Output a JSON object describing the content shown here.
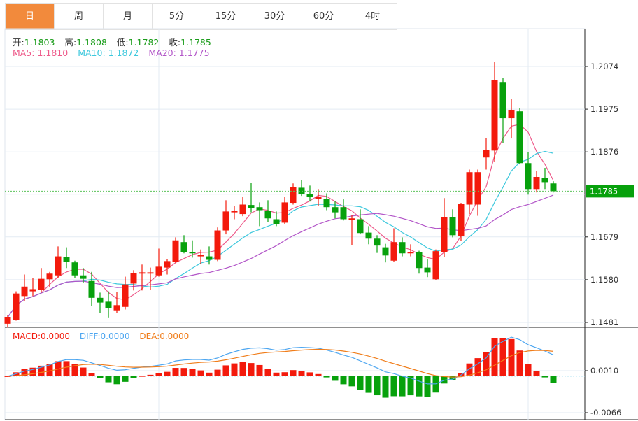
{
  "tabs": [
    "日",
    "周",
    "月",
    "5分",
    "15分",
    "30分",
    "60分",
    "4时"
  ],
  "active_tab": 0,
  "ohlc_legend": {
    "open_label": "开:",
    "open": "1.1803",
    "high_label": "高:",
    "high": "1.1808",
    "low_label": "低:",
    "low": "1.1782",
    "close_label": "收:",
    "close": "1.1785"
  },
  "ma_legend": {
    "ma5": "MA5: 1.1810",
    "ma10": "MA10: 1.1872",
    "ma20": "MA20: 1.1775"
  },
  "macd_legend": {
    "macd": "MACD:0.0000",
    "diff": "DIFF:0.0000",
    "dea": "DEA:0.0000"
  },
  "colors": {
    "up": "#f31a0c",
    "down": "#07a10c",
    "ma5": "#ee5a8a",
    "ma10": "#3dc8dd",
    "ma20": "#b255c8",
    "diff": "#4da6f0",
    "dea": "#f07d1a",
    "accent": "#f28a3c"
  },
  "chart_data": [
    {
      "type": "candlestick",
      "title": "",
      "current_price": "1.1785",
      "y_ticks": [
        "1.2074",
        "1.1975",
        "1.1876",
        "1.1679",
        "1.1580",
        "1.1481"
      ],
      "ylim": [
        1.1481,
        1.2074
      ],
      "ma_periods": [
        5,
        10,
        20
      ],
      "candles_ohlc": [
        [
          1.1478,
          1.1498,
          1.1469,
          1.1493
        ],
        [
          1.1487,
          1.1553,
          1.1485,
          1.1548
        ],
        [
          1.1542,
          1.1592,
          1.153,
          1.1564
        ],
        [
          1.1553,
          1.1584,
          1.1542,
          1.1558
        ],
        [
          1.1556,
          1.1607,
          1.155,
          1.1582
        ],
        [
          1.1581,
          1.1598,
          1.1563,
          1.1594
        ],
        [
          1.159,
          1.1657,
          1.1584,
          1.1634
        ],
        [
          1.1632,
          1.1655,
          1.1607,
          1.1621
        ],
        [
          1.162,
          1.1624,
          1.1584,
          1.159
        ],
        [
          1.159,
          1.1607,
          1.1572,
          1.1582
        ],
        [
          1.1577,
          1.1598,
          1.1519,
          1.1538
        ],
        [
          1.1538,
          1.155,
          1.1503,
          1.1527
        ],
        [
          1.1529,
          1.1553,
          1.1491,
          1.1514
        ],
        [
          1.1509,
          1.1551,
          1.1503,
          1.1521
        ],
        [
          1.1517,
          1.1587,
          1.1511,
          1.1569
        ],
        [
          1.1571,
          1.1602,
          1.1555,
          1.1595
        ],
        [
          1.1594,
          1.1615,
          1.1555,
          1.1597
        ],
        [
          1.1594,
          1.1608,
          1.1556,
          1.1597
        ],
        [
          1.159,
          1.1652,
          1.1587,
          1.161
        ],
        [
          1.1608,
          1.1628,
          1.1592,
          1.1623
        ],
        [
          1.1621,
          1.1678,
          1.1618,
          1.1671
        ],
        [
          1.1667,
          1.1683,
          1.1641,
          1.1644
        ],
        [
          1.1644,
          1.1671,
          1.1631,
          1.1641
        ],
        [
          1.1634,
          1.165,
          1.1616,
          1.1637
        ],
        [
          1.1634,
          1.1657,
          1.1615,
          1.1626
        ],
        [
          1.1626,
          1.1701,
          1.1623,
          1.1694
        ],
        [
          1.1694,
          1.1764,
          1.1685,
          1.1738
        ],
        [
          1.1736,
          1.1751,
          1.172,
          1.174
        ],
        [
          1.1732,
          1.1771,
          1.1727,
          1.1754
        ],
        [
          1.1753,
          1.1805,
          1.1736,
          1.1746
        ],
        [
          1.1748,
          1.1759,
          1.1704,
          1.1741
        ],
        [
          1.174,
          1.1764,
          1.1714,
          1.1722
        ],
        [
          1.172,
          1.1738,
          1.1704,
          1.1709
        ],
        [
          1.1712,
          1.1771,
          1.1709,
          1.1759
        ],
        [
          1.1758,
          1.1803,
          1.1754,
          1.1795
        ],
        [
          1.1793,
          1.181,
          1.1774,
          1.1779
        ],
        [
          1.1779,
          1.1798,
          1.1761,
          1.1771
        ],
        [
          1.1767,
          1.179,
          1.1751,
          1.1772
        ],
        [
          1.1767,
          1.178,
          1.1741,
          1.1748
        ],
        [
          1.1748,
          1.1761,
          1.1722,
          1.1736
        ],
        [
          1.1748,
          1.1766,
          1.1717,
          1.172
        ],
        [
          1.1719,
          1.173,
          1.166,
          1.1722
        ],
        [
          1.172,
          1.1743,
          1.1685,
          1.1688
        ],
        [
          1.1689,
          1.1704,
          1.1662,
          1.1675
        ],
        [
          1.1675,
          1.1683,
          1.1642,
          1.1659
        ],
        [
          1.1655,
          1.1663,
          1.162,
          1.1636
        ],
        [
          1.1624,
          1.1699,
          1.1621,
          1.1667
        ],
        [
          1.1667,
          1.1678,
          1.1634,
          1.1641
        ],
        [
          1.1641,
          1.1662,
          1.1634,
          1.1644
        ],
        [
          1.1644,
          1.1647,
          1.1594,
          1.1607
        ],
        [
          1.1608,
          1.1628,
          1.1586,
          1.1597
        ],
        [
          1.1581,
          1.165,
          1.1579,
          1.1646
        ],
        [
          1.1644,
          1.1769,
          1.1632,
          1.1725
        ],
        [
          1.1725,
          1.1743,
          1.1678,
          1.1683
        ],
        [
          1.1681,
          1.1758,
          1.167,
          1.1756
        ],
        [
          1.1754,
          1.1835,
          1.1732,
          1.1829
        ],
        [
          1.1754,
          1.1835,
          1.1728,
          1.1829
        ],
        [
          1.1863,
          1.1908,
          1.1835,
          1.1881
        ],
        [
          1.1879,
          1.2084,
          1.1852,
          1.2042
        ],
        [
          1.2038,
          1.2048,
          1.1897,
          1.1954
        ],
        [
          1.1954,
          1.1998,
          1.1907,
          1.1972
        ],
        [
          1.197,
          1.1977,
          1.1847,
          1.185
        ],
        [
          1.185,
          1.1876,
          1.1777,
          1.179
        ],
        [
          1.179,
          1.1831,
          1.1782,
          1.1818
        ],
        [
          1.1816,
          1.1839,
          1.179,
          1.1806
        ],
        [
          1.1803,
          1.1808,
          1.1782,
          1.1785
        ]
      ]
    },
    {
      "type": "bar+line",
      "title": "MACD",
      "y_ticks": [
        "0.0010",
        "-0.0066"
      ],
      "ylim": [
        -0.0066,
        0.001
      ],
      "params": {
        "fast": 12,
        "slow": 26,
        "signal": 9
      },
      "series": [
        "MACD",
        "DIFF",
        "DEA"
      ]
    }
  ]
}
